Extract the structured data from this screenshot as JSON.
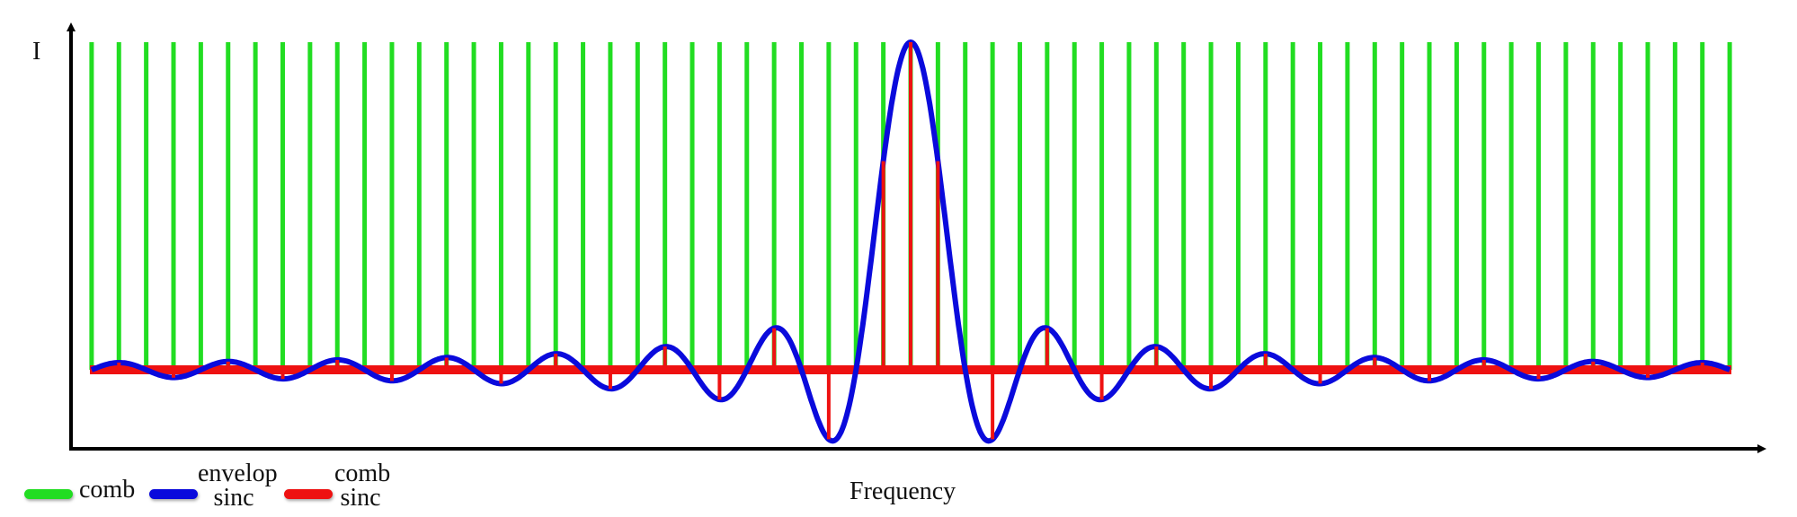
{
  "chart_data": {
    "type": "line",
    "title": "",
    "xlabel": "Frequency",
    "ylabel": "I",
    "n": [
      -30,
      -29,
      -28,
      -27,
      -26,
      -25,
      -24,
      -23,
      -22,
      -21,
      -20,
      -19,
      -18,
      -17,
      -16,
      -15,
      -14,
      -13,
      -12,
      -11,
      -10,
      -9,
      -8,
      -7,
      -6,
      -5,
      -4,
      -3,
      -2,
      -1,
      0,
      1,
      2,
      3,
      4,
      5,
      6,
      7,
      8,
      9,
      10,
      11,
      12,
      13,
      14,
      15,
      16,
      17,
      18,
      19,
      20,
      21,
      22,
      23,
      24,
      25,
      26,
      27,
      28,
      29,
      30
    ],
    "series": [
      {
        "name": "comb",
        "color": "#22dd22",
        "amplitude": 1
      },
      {
        "name": "envelop sinc",
        "color": "#0a0adc",
        "first_zero": 2
      },
      {
        "name": "comb sinc",
        "color": "#ee1111",
        "values": [
          0,
          0.022,
          0,
          -0.024,
          0,
          0.025,
          0,
          -0.028,
          0,
          0.03,
          0,
          -0.034,
          0,
          0.037,
          0,
          -0.042,
          0,
          0.049,
          0,
          -0.058,
          0,
          0.071,
          0,
          -0.091,
          0,
          0.127,
          0,
          -0.212,
          0,
          0.637,
          1,
          0.637,
          0,
          -0.212,
          0,
          0.127,
          0,
          -0.091,
          0,
          0.071,
          0,
          -0.058,
          0,
          0.049,
          0,
          -0.042,
          0,
          0.037,
          0,
          -0.034,
          0,
          0.03,
          0,
          -0.028,
          0,
          0.025,
          0,
          -0.024,
          0,
          0.022,
          0
        ]
      }
    ],
    "xlim": [
      -30,
      30
    ],
    "ylim": [
      -0.3,
      1
    ],
    "grid": false,
    "legend": {
      "placement": "bottom-left",
      "entries": [
        {
          "line1": "comb",
          "line2": ""
        },
        {
          "line1": "envelop",
          "line2": "sinc"
        },
        {
          "line1": "comb",
          "line2": "sinc"
        }
      ]
    }
  }
}
